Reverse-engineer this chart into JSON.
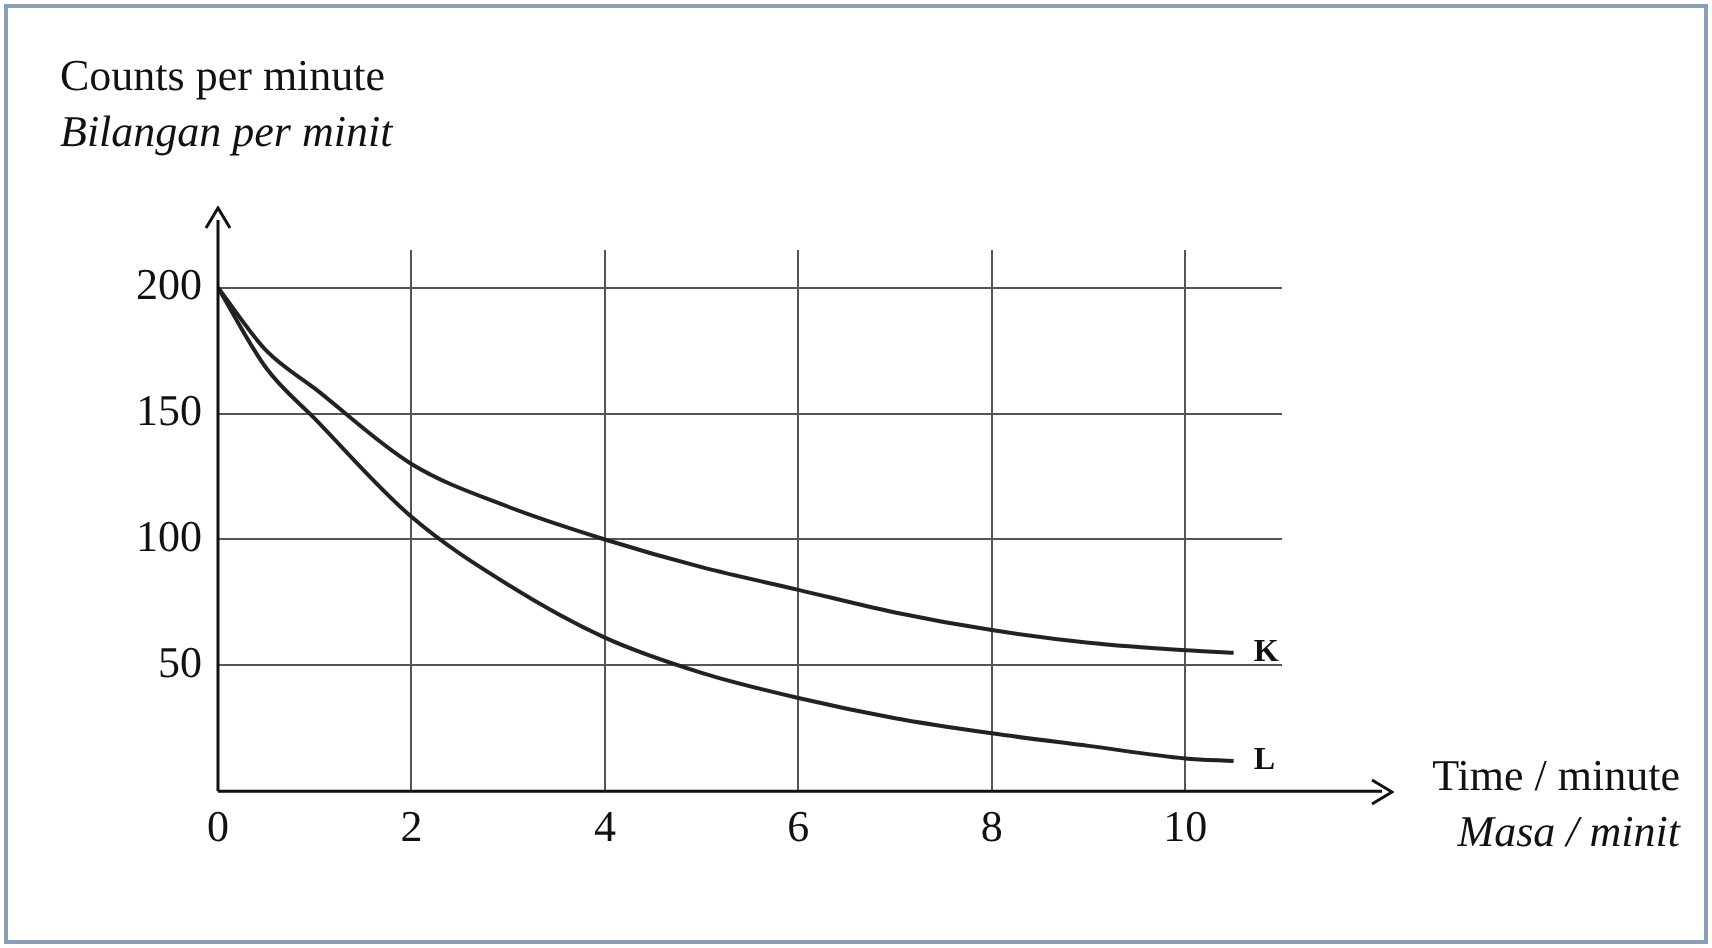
{
  "chart_data": {
    "type": "line",
    "ylabel": "Counts per minute\nBilangan per minit",
    "xlabel": "Time / minute\nMasa / minit",
    "x": [
      0,
      0.5,
      1,
      2,
      3,
      4,
      5,
      6,
      7,
      8,
      9,
      10,
      10.5
    ],
    "series": [
      {
        "color": "#222222",
        "values": [
          200,
          175,
          160,
          130,
          113,
          100,
          89,
          80,
          71,
          64,
          59,
          56,
          55
        ]
      },
      {
        "color": "#222222",
        "values": [
          200,
          168,
          148,
          109,
          82,
          61,
          47,
          37,
          29,
          23,
          18,
          13,
          12
        ]
      }
    ],
    "xlim": [
      0,
      11
    ],
    "ylim": [
      0,
      215
    ],
    "xticks": [
      0,
      2,
      4,
      6,
      8,
      10
    ],
    "yticks": [
      50,
      100,
      150,
      200
    ],
    "grid": true,
    "marker": "none",
    "line_style": "solid",
    "annotations": [
      {
        "text": "K",
        "x": 10.5,
        "y": 55
      },
      {
        "text": "L",
        "x": 10.5,
        "y": 12
      }
    ]
  }
}
